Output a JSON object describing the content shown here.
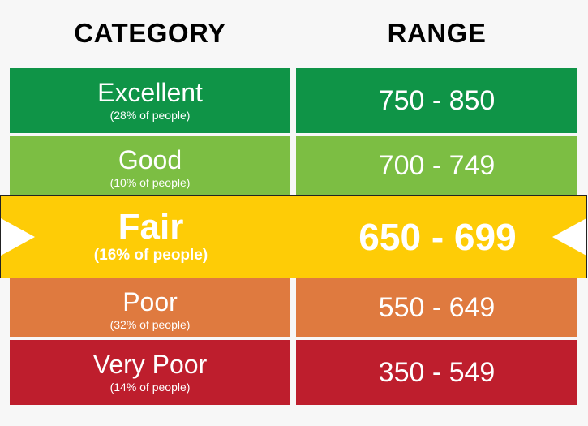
{
  "headers": {
    "category": "CATEGORY",
    "range": "RANGE"
  },
  "rows": [
    {
      "name": "Excellent",
      "pct": "(28% of people)",
      "range": "750 - 850",
      "color": "#0f9447"
    },
    {
      "name": "Good",
      "pct": "(10% of people)",
      "range": "700 - 749",
      "color": "#7cbe43"
    },
    {
      "name": "Fair",
      "pct": "(16% of people)",
      "range": "650 - 699",
      "color": "#fecc06",
      "highlighted": true
    },
    {
      "name": "Poor",
      "pct": "(32% of people)",
      "range": "550 - 649",
      "color": "#df7a3f"
    },
    {
      "name": "Very Poor",
      "pct": "(14% of people)",
      "range": "350 - 549",
      "color": "#be1e2d"
    }
  ]
}
